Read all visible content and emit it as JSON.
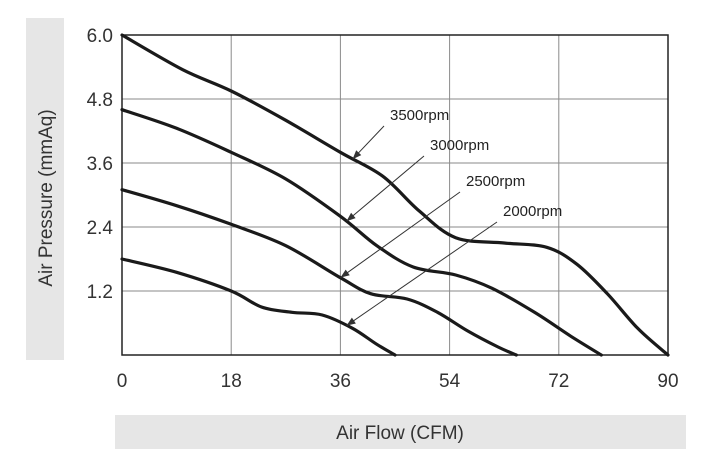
{
  "chart_data": {
    "type": "line",
    "title": "",
    "xlabel": "Air Flow (CFM)",
    "ylabel": "Air Pressure (mmAq)",
    "xlim": [
      0,
      90
    ],
    "ylim": [
      0,
      6.0
    ],
    "x_ticks": [
      "0",
      "18",
      "36",
      "54",
      "72",
      "90"
    ],
    "y_ticks": [
      "1.2",
      "2.4",
      "3.6",
      "4.8",
      "6.0"
    ],
    "grid": true,
    "series": [
      {
        "name": "3500rpm",
        "x": [
          0,
          10,
          18,
          27,
          36,
          43,
          49,
          55,
          63,
          70,
          75,
          80,
          85,
          90
        ],
        "y": [
          6.0,
          5.35,
          4.95,
          4.4,
          3.8,
          3.35,
          2.7,
          2.2,
          2.1,
          2.02,
          1.7,
          1.15,
          0.5,
          0.0
        ]
      },
      {
        "name": "3000rpm",
        "x": [
          0,
          9,
          18,
          27,
          36,
          42,
          48,
          55,
          61,
          68,
          74,
          79
        ],
        "y": [
          4.6,
          4.25,
          3.8,
          3.3,
          2.6,
          2.05,
          1.65,
          1.5,
          1.25,
          0.8,
          0.35,
          0.0
        ]
      },
      {
        "name": "2500rpm",
        "x": [
          0,
          9,
          18,
          27,
          36,
          41,
          47,
          52,
          57,
          62,
          65
        ],
        "y": [
          3.1,
          2.8,
          2.45,
          2.05,
          1.45,
          1.15,
          1.05,
          0.8,
          0.45,
          0.15,
          0.0
        ]
      },
      {
        "name": "2000rpm",
        "x": [
          0,
          9,
          18,
          23,
          28,
          33,
          38,
          42,
          45
        ],
        "y": [
          1.8,
          1.55,
          1.2,
          0.9,
          0.8,
          0.75,
          0.5,
          0.2,
          0.0
        ]
      }
    ],
    "annotations": [
      {
        "label": "3500rpm",
        "series": "3500rpm"
      },
      {
        "label": "3000rpm",
        "series": "3000rpm"
      },
      {
        "label": "2500rpm",
        "series": "2500rpm"
      },
      {
        "label": "2000rpm",
        "series": "2000rpm"
      }
    ]
  }
}
